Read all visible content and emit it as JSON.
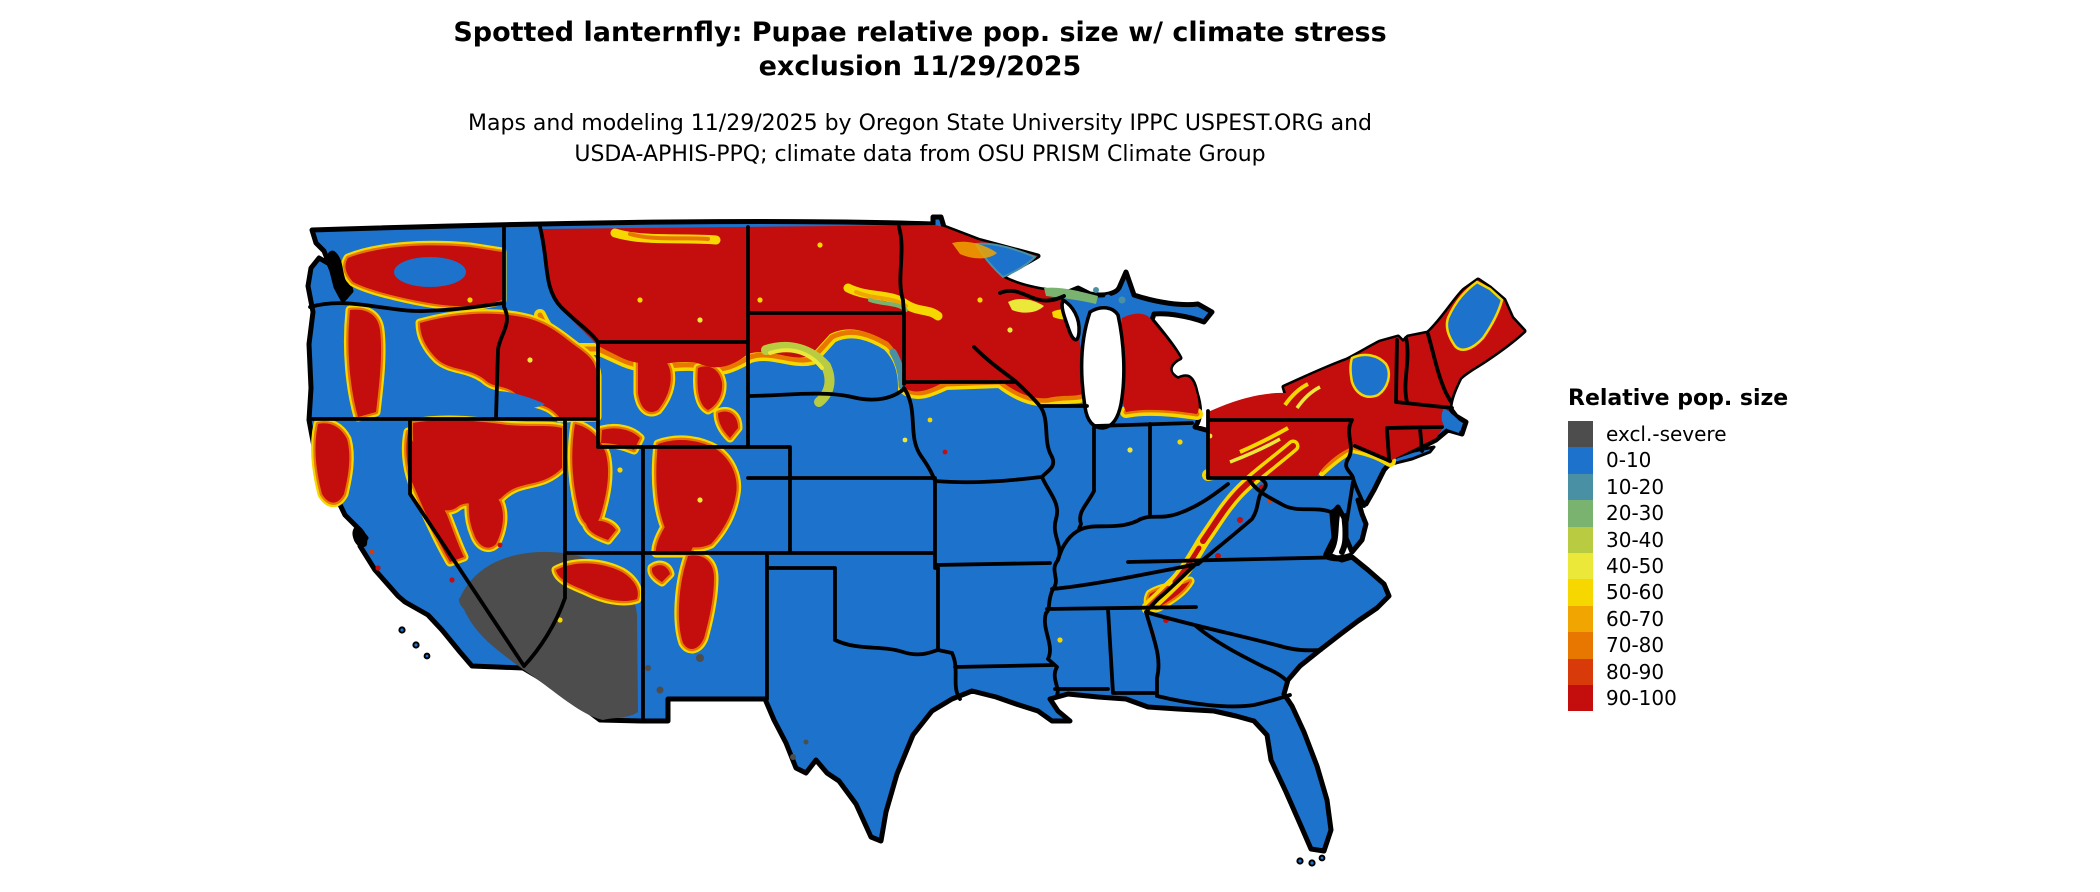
{
  "title": {
    "line1": "Spotted lanternfly: Pupae relative pop. size w/ climate stress",
    "line2": "exclusion 11/29/2025"
  },
  "subtitle": {
    "line1": "Maps and modeling 11/29/2025 by Oregon State University IPPC USPEST.ORG and",
    "line2": "USDA-APHIS-PPQ; climate data from OSU PRISM Climate Group"
  },
  "map": {
    "region": "Continental United States",
    "kind": "categorical raster choropleth",
    "background_color": "#ffffff",
    "border_color": "#000000"
  },
  "legend": {
    "title": "Relative pop. size",
    "items": [
      {
        "label": "excl.-severe",
        "color": "#4d4d4d"
      },
      {
        "label": "0-10",
        "color": "#1d72cc"
      },
      {
        "label": "10-20",
        "color": "#4a90a4"
      },
      {
        "label": "20-30",
        "color": "#7ab370"
      },
      {
        "label": "30-40",
        "color": "#b9cc41"
      },
      {
        "label": "40-50",
        "color": "#ece83a"
      },
      {
        "label": "50-60",
        "color": "#f6d800"
      },
      {
        "label": "60-70",
        "color": "#f0a500"
      },
      {
        "label": "70-80",
        "color": "#e87700"
      },
      {
        "label": "80-90",
        "color": "#d83b09"
      },
      {
        "label": "90-100",
        "color": "#c40d0d"
      }
    ]
  }
}
